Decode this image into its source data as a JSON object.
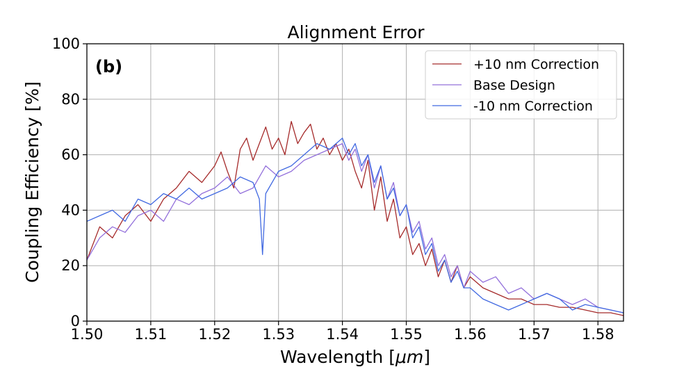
{
  "chart_data": {
    "type": "line",
    "title": "Alignment Error",
    "panel_label": "(b)",
    "xlabel": "Wavelength [",
    "xlabel_unit": "μm",
    "xlabel_close": "]",
    "ylabel": "Coupling Efficiency [%]",
    "xlim": [
      1.5,
      1.584
    ],
    "ylim": [
      0,
      100
    ],
    "x_ticks": [
      1.5,
      1.51,
      1.52,
      1.53,
      1.54,
      1.55,
      1.56,
      1.57,
      1.58
    ],
    "x_tick_labels": [
      "1.50",
      "1.51",
      "1.52",
      "1.53",
      "1.54",
      "1.55",
      "1.56",
      "1.57",
      "1.58"
    ],
    "y_ticks": [
      0,
      20,
      40,
      60,
      80,
      100
    ],
    "y_tick_labels": [
      "0",
      "20",
      "40",
      "60",
      "80",
      "100"
    ],
    "grid": true,
    "legend_position": "top-right",
    "legend": [
      "+10 nm Correction",
      "Base Design",
      "-10 nm Correction"
    ],
    "series": [
      {
        "name": "+10 nm Correction",
        "color": "#a52a2a",
        "x": [
          1.5,
          1.502,
          1.504,
          1.506,
          1.508,
          1.51,
          1.512,
          1.514,
          1.516,
          1.518,
          1.52,
          1.521,
          1.522,
          1.523,
          1.524,
          1.525,
          1.526,
          1.527,
          1.528,
          1.529,
          1.53,
          1.531,
          1.532,
          1.533,
          1.534,
          1.535,
          1.536,
          1.537,
          1.538,
          1.539,
          1.54,
          1.541,
          1.542,
          1.543,
          1.544,
          1.545,
          1.546,
          1.547,
          1.548,
          1.549,
          1.55,
          1.551,
          1.552,
          1.553,
          1.554,
          1.555,
          1.556,
          1.557,
          1.558,
          1.559,
          1.56,
          1.562,
          1.564,
          1.566,
          1.568,
          1.57,
          1.572,
          1.574,
          1.576,
          1.578,
          1.58,
          1.582,
          1.584
        ],
        "y": [
          22,
          34,
          30,
          38,
          42,
          36,
          44,
          48,
          54,
          50,
          56,
          61,
          54,
          48,
          62,
          66,
          58,
          64,
          70,
          62,
          66,
          60,
          72,
          64,
          68,
          71,
          62,
          66,
          60,
          64,
          58,
          62,
          54,
          48,
          58,
          40,
          52,
          36,
          44,
          30,
          34,
          24,
          28,
          20,
          26,
          16,
          22,
          14,
          20,
          12,
          16,
          12,
          10,
          8,
          8,
          6,
          6,
          5,
          5,
          4,
          3,
          3,
          2
        ]
      },
      {
        "name": "Base Design",
        "color": "#9370db",
        "x": [
          1.5,
          1.502,
          1.504,
          1.506,
          1.508,
          1.51,
          1.512,
          1.514,
          1.516,
          1.518,
          1.52,
          1.522,
          1.524,
          1.526,
          1.528,
          1.53,
          1.532,
          1.534,
          1.536,
          1.538,
          1.54,
          1.541,
          1.542,
          1.543,
          1.544,
          1.545,
          1.546,
          1.547,
          1.548,
          1.549,
          1.55,
          1.551,
          1.552,
          1.553,
          1.554,
          1.555,
          1.556,
          1.557,
          1.558,
          1.559,
          1.56,
          1.562,
          1.564,
          1.566,
          1.568,
          1.57,
          1.572,
          1.574,
          1.576,
          1.578,
          1.58,
          1.582,
          1.584
        ],
        "y": [
          22,
          30,
          34,
          32,
          38,
          40,
          36,
          44,
          42,
          46,
          48,
          52,
          46,
          48,
          56,
          52,
          54,
          58,
          60,
          62,
          64,
          58,
          62,
          54,
          60,
          48,
          56,
          44,
          50,
          38,
          42,
          32,
          36,
          26,
          30,
          20,
          24,
          16,
          20,
          12,
          18,
          14,
          16,
          10,
          12,
          8,
          10,
          8,
          6,
          8,
          5,
          4,
          3
        ]
      },
      {
        "name": "-10 nm Correction",
        "color": "#4169e1",
        "x": [
          1.5,
          1.502,
          1.504,
          1.506,
          1.508,
          1.51,
          1.512,
          1.514,
          1.516,
          1.518,
          1.52,
          1.522,
          1.524,
          1.526,
          1.527,
          1.5275,
          1.528,
          1.53,
          1.532,
          1.534,
          1.536,
          1.538,
          1.54,
          1.541,
          1.542,
          1.543,
          1.544,
          1.545,
          1.546,
          1.547,
          1.548,
          1.549,
          1.55,
          1.551,
          1.552,
          1.553,
          1.554,
          1.555,
          1.556,
          1.557,
          1.558,
          1.559,
          1.56,
          1.562,
          1.564,
          1.566,
          1.568,
          1.57,
          1.572,
          1.574,
          1.576,
          1.578,
          1.58,
          1.582,
          1.584
        ],
        "y": [
          36,
          38,
          40,
          36,
          44,
          42,
          46,
          44,
          48,
          44,
          46,
          48,
          52,
          50,
          44,
          24,
          46,
          54,
          56,
          60,
          64,
          62,
          66,
          60,
          64,
          56,
          60,
          50,
          56,
          44,
          48,
          38,
          42,
          30,
          34,
          24,
          28,
          18,
          22,
          14,
          18,
          12,
          12,
          8,
          6,
          4,
          6,
          8,
          10,
          8,
          4,
          6,
          5,
          4,
          3
        ]
      }
    ]
  }
}
